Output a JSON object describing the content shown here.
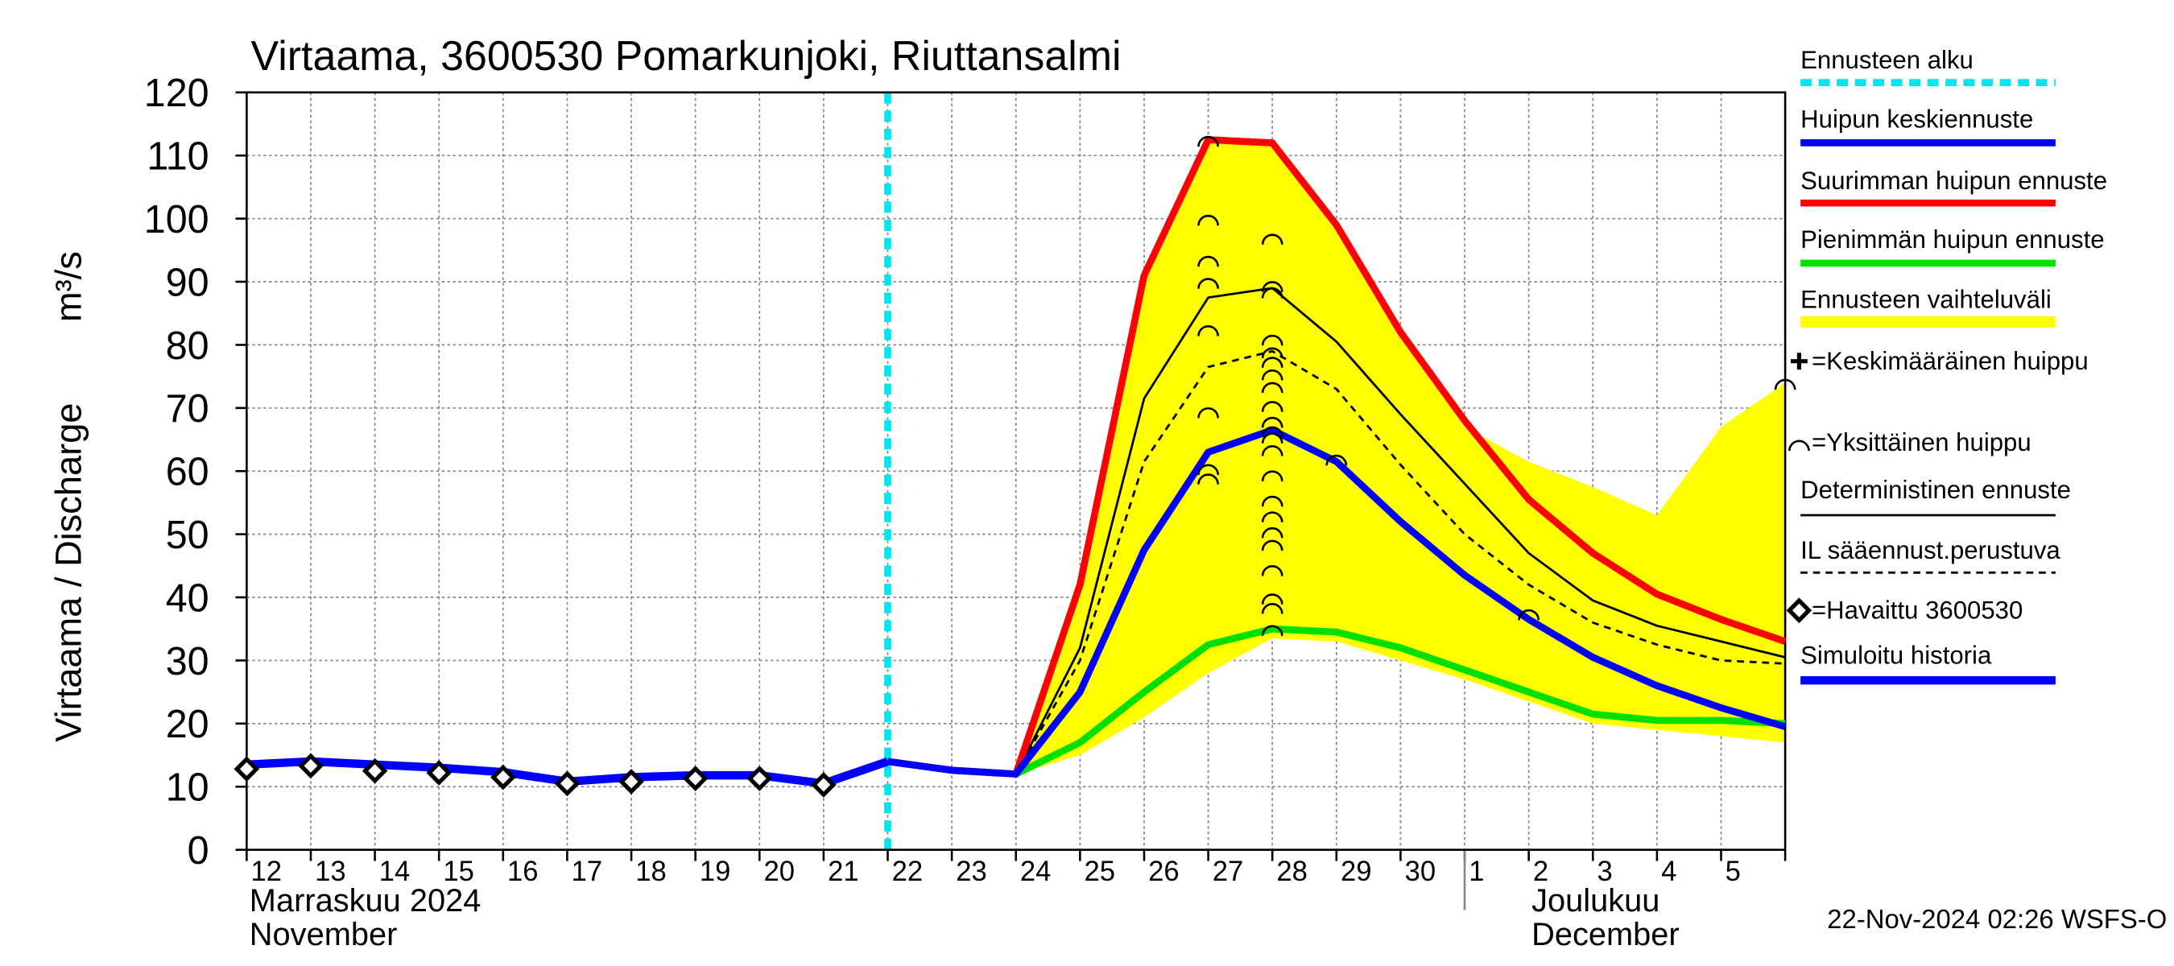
{
  "chart_data": {
    "type": "line",
    "title": "Virtaama, 3600530 Pomarkunjoki, Riuttansalmi",
    "ylabel": "Virtaama / Discharge",
    "yunit": "m³/s",
    "categories": [
      "12",
      "13",
      "14",
      "15",
      "16",
      "17",
      "18",
      "19",
      "20",
      "21",
      "22",
      "23",
      "24",
      "25",
      "26",
      "27",
      "28",
      "29",
      "30",
      "1",
      "2",
      "3",
      "4",
      "5",
      null
    ],
    "ylim": [
      0,
      120
    ],
    "yticks": [
      0,
      10,
      20,
      30,
      40,
      50,
      60,
      70,
      80,
      90,
      100,
      110,
      120
    ],
    "grid": true,
    "months": [
      {
        "fi": "Marraskuu 2024",
        "en": "November",
        "start": "12"
      },
      {
        "fi": "Joulukuu",
        "en": "December",
        "start": "1"
      }
    ],
    "forecast_start": {
      "name": "Ennusteen alku",
      "color": "#00e5ee",
      "at": "22"
    },
    "band": {
      "name": "Ennusteen vaihteluväli",
      "color": "#ffff00",
      "upper": [
        null,
        null,
        null,
        null,
        null,
        null,
        null,
        null,
        null,
        null,
        null,
        null,
        12,
        44,
        91,
        112.5,
        112,
        99,
        82,
        67,
        61.5,
        57.5,
        53,
        67,
        74
      ],
      "lower": [
        null,
        null,
        null,
        null,
        null,
        null,
        null,
        null,
        null,
        null,
        null,
        null,
        12,
        15,
        21,
        28,
        33.5,
        33,
        30,
        27,
        23.5,
        20,
        19,
        18,
        17
      ]
    },
    "series": [
      {
        "name": "Huipun keskiennuste",
        "color": "#0000ff",
        "width": 5,
        "values": [
          null,
          null,
          null,
          null,
          null,
          null,
          null,
          null,
          null,
          null,
          14,
          12.6,
          12,
          25,
          47.5,
          63,
          66.5,
          61.5,
          52,
          43.5,
          36.5,
          30.5,
          26,
          22.5,
          19.5
        ]
      },
      {
        "name": "Suurimman huipun ennuste",
        "color": "#ff0000",
        "width": 5,
        "values": [
          null,
          null,
          null,
          null,
          null,
          null,
          null,
          null,
          null,
          null,
          14,
          12.6,
          12,
          42,
          91,
          112.5,
          112,
          99,
          82,
          68,
          55.5,
          47,
          40.5,
          36.5,
          33
        ]
      },
      {
        "name": "Pienimmän huipun ennuste",
        "color": "#00e000",
        "width": 5,
        "values": [
          null,
          null,
          null,
          null,
          null,
          null,
          null,
          null,
          null,
          null,
          null,
          null,
          12,
          17,
          25,
          32.5,
          35,
          34.5,
          32,
          28.5,
          25,
          21.5,
          20.5,
          20.5,
          20
        ]
      },
      {
        "name": "Deterministinen ennuste",
        "color": "#000000",
        "width": 1.6,
        "values": [
          null,
          null,
          null,
          null,
          null,
          null,
          null,
          null,
          null,
          null,
          null,
          null,
          12,
          32,
          71.5,
          87.5,
          89,
          80.5,
          69,
          58,
          47,
          39.5,
          35.5,
          33,
          30.5
        ]
      },
      {
        "name": "IL sääennust.perustuva",
        "color": "#000000",
        "width": 1.6,
        "dash": true,
        "values": [
          null,
          null,
          null,
          null,
          null,
          null,
          null,
          null,
          null,
          null,
          null,
          null,
          12,
          30,
          61.5,
          76.5,
          79,
          73,
          61,
          50,
          42,
          36,
          32.5,
          30,
          29.5
        ]
      },
      {
        "name": "=Havaittu 3600530",
        "color": "#000000",
        "marker": "diamond",
        "values": [
          12.8,
          13.3,
          12.5,
          12.2,
          11.5,
          10.5,
          10.8,
          11.3,
          11.3,
          10.3,
          null,
          null,
          null,
          null,
          null,
          null,
          null,
          null,
          null,
          null,
          null,
          null,
          null,
          null,
          null
        ]
      },
      {
        "name": "Simuloitu historia",
        "color": "#0000ff",
        "width": 6,
        "values": [
          13.5,
          14,
          13.5,
          13,
          12.3,
          10.8,
          11.5,
          11.8,
          11.8,
          10.5,
          14,
          null,
          null,
          null,
          null,
          null,
          null,
          null,
          null,
          null,
          null,
          null,
          null,
          null,
          null
        ]
      }
    ],
    "mean_peak": {
      "name": "=Keskimääräinen huippu"
    },
    "peaks": {
      "name": "=Yksittäinen huippu",
      "x": [
        15,
        15,
        15,
        15,
        15,
        15,
        15,
        15,
        16,
        16,
        16,
        16,
        16,
        16,
        16,
        16,
        16,
        16,
        16,
        16,
        16,
        16,
        16,
        16,
        16,
        16,
        16,
        16,
        16,
        16,
        17,
        20,
        24
      ],
      "y": [
        112.5,
        100,
        93.5,
        90,
        82.5,
        69.5,
        60.5,
        59,
        97,
        89.5,
        88.5,
        81,
        79,
        77.5,
        75.5,
        73.5,
        70.5,
        68,
        66.5,
        65.5,
        63.5,
        59.5,
        55.5,
        53,
        50.5,
        48.5,
        44.5,
        40,
        38.5,
        35,
        62,
        37.5,
        74
      ]
    },
    "footer": "22-Nov-2024 02:26 WSFS-O"
  }
}
